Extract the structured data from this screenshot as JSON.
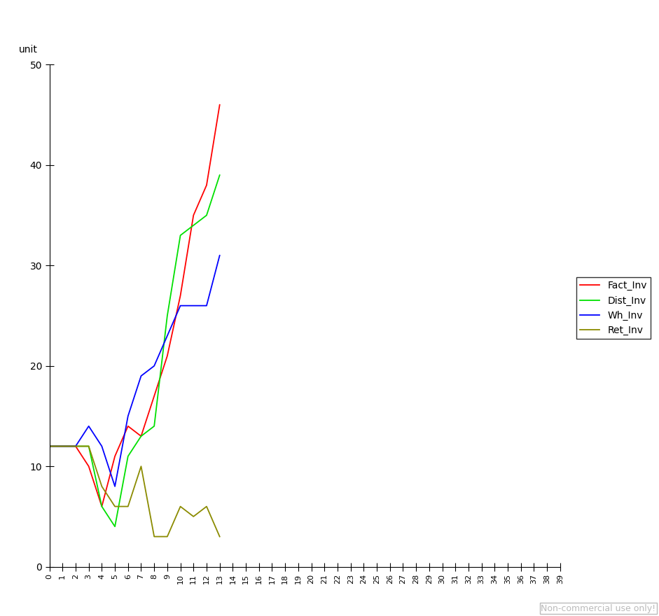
{
  "chart_data": {
    "type": "line",
    "y_label": "unit",
    "x": [
      0,
      1,
      2,
      3,
      4,
      5,
      6,
      7,
      8,
      9,
      10,
      11,
      12,
      13
    ],
    "series": [
      {
        "name": "Fact_Inv",
        "color": "#ff0000",
        "values": [
          12,
          12,
          12,
          10,
          6,
          11,
          14,
          13,
          17,
          21,
          27,
          35,
          38,
          46
        ]
      },
      {
        "name": "Dist_Inv",
        "color": "#00e000",
        "values": [
          12,
          12,
          12,
          12,
          6,
          4,
          11,
          13,
          14,
          25,
          33,
          34,
          35,
          39
        ]
      },
      {
        "name": "Wh_Inv",
        "color": "#0000ff",
        "values": [
          12,
          12,
          12,
          14,
          12,
          8,
          15,
          19,
          20,
          23,
          26,
          26,
          26,
          31
        ]
      },
      {
        "name": "Ret_Inv",
        "color": "#8b8b00",
        "values": [
          12,
          12,
          12,
          12,
          8,
          6,
          6,
          10,
          3,
          3,
          6,
          5,
          6,
          3
        ]
      }
    ],
    "xlim": [
      0,
      39
    ],
    "xticks": [
      0,
      1,
      2,
      3,
      4,
      5,
      6,
      7,
      8,
      9,
      10,
      11,
      12,
      13,
      14,
      15,
      16,
      17,
      18,
      19,
      20,
      21,
      22,
      23,
      24,
      25,
      26,
      27,
      28,
      29,
      30,
      31,
      32,
      33,
      34,
      35,
      36,
      37,
      38,
      39
    ],
    "ylim": [
      0,
      50
    ],
    "yticks": [
      0,
      10,
      20,
      30,
      40,
      50
    ],
    "legend": "right",
    "grid": false,
    "annotations": [
      "Non-commercial use only!"
    ]
  }
}
